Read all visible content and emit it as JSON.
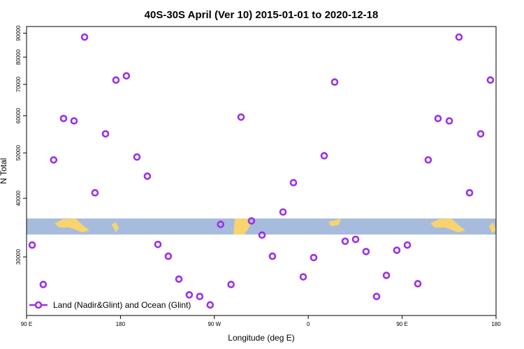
{
  "chart_data": {
    "type": "scatter",
    "title": "40S-30S April (Ver 10)   2015-01-01 to 2020-12-18",
    "x_label": "Longitude (deg E)",
    "y_label": "N Total",
    "log_y": true,
    "legend": "bottom-left",
    "xlim": [
      90,
      540
    ],
    "xticks": [
      {
        "value": 90,
        "label": "90 E"
      },
      180,
      {
        "value": 270,
        "label": "90 W"
      },
      {
        "value": 360,
        "label": "0"
      },
      {
        "value": 450,
        "label": "90 E"
      },
      {
        "value": 540,
        "label": "180"
      }
    ],
    "ylim": [
      22500,
      93000
    ],
    "yticks": [
      30000,
      40000,
      50000,
      60000,
      70000,
      80000,
      90000
    ],
    "series": [
      {
        "name": "Land (Nadir&Glint) and Ocean (Glint)",
        "color": "#9b30e8",
        "x": [
          95.4,
          106,
          116,
          125.5,
          135.5,
          145.6,
          155.6,
          165.7,
          175.7,
          185.7,
          195.8,
          205.8,
          215.9,
          225.9,
          236,
          246,
          256,
          266,
          276,
          286,
          295.6,
          305.6,
          315.7,
          325.7,
          335.8,
          345.8,
          355.2,
          365.2,
          375.3,
          385.3,
          395.4,
          405.4,
          415.4,
          425.5,
          434.9,
          444.9,
          455,
          465,
          475,
          484.4,
          495.2,
          504.5,
          514.6,
          525.3,
          534.6
        ],
        "values": [
          31800,
          26200,
          48300,
          59200,
          58500,
          88300,
          41100,
          54900,
          71500,
          73000,
          49000,
          44600,
          31900,
          30100,
          26900,
          24900,
          24700,
          23700,
          35200,
          26200,
          59600,
          35800,
          33400,
          30100,
          37400,
          43200,
          27200,
          29900,
          49300,
          70800,
          32400,
          32700,
          30800,
          24700,
          27400,
          31000,
          31800,
          26300,
          48300,
          59200,
          58500,
          88300,
          41100,
          54900,
          71500
        ]
      }
    ]
  }
}
